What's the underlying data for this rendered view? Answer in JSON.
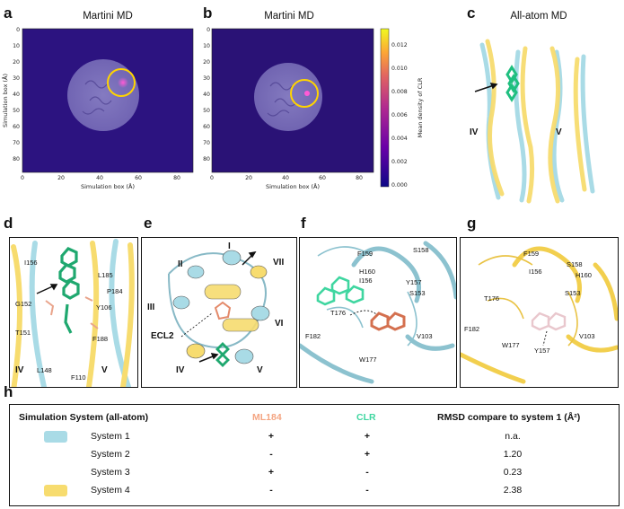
{
  "panels": {
    "a": {
      "label": "a",
      "title": "Martini MD",
      "xlabel": "Simulation box (Å)",
      "ylabel": "Simulation box (Å)",
      "xticks": [
        "0",
        "20",
        "40",
        "60",
        "80"
      ],
      "yticks": [
        "0",
        "10",
        "20",
        "30",
        "40",
        "50",
        "60",
        "70",
        "80"
      ]
    },
    "b": {
      "label": "b",
      "title": "Martini MD",
      "xlabel": "Simulation box (Å)",
      "xticks": [
        "0",
        "20",
        "40",
        "60",
        "80"
      ],
      "yticks": [
        "0",
        "10",
        "20",
        "30",
        "40",
        "50",
        "60",
        "70",
        "80"
      ]
    },
    "c": {
      "label": "c",
      "title": "All-atom MD",
      "helix_left": "IV",
      "helix_right": "V"
    },
    "d": {
      "label": "d",
      "residues": [
        "I156",
        "L185",
        "P184",
        "G152",
        "Y106",
        "T151",
        "F188",
        "L148",
        "F110"
      ],
      "helix_left": "IV",
      "helix_right": "V"
    },
    "e": {
      "label": "e",
      "helices": [
        "I",
        "II",
        "III",
        "IV",
        "V",
        "VI",
        "VII"
      ],
      "loop": "ECL2"
    },
    "f": {
      "label": "f",
      "residues": [
        "F159",
        "S158",
        "H160",
        "I156",
        "Y157",
        "T176",
        "S153",
        "F182",
        "V103",
        "W177"
      ]
    },
    "g": {
      "label": "g",
      "residues": [
        "F159",
        "S158",
        "I156",
        "H160",
        "T176",
        "S153",
        "F182",
        "V103",
        "W177",
        "Y157"
      ]
    },
    "h": {
      "label": "h"
    }
  },
  "colorbar": {
    "label": "Mean density of CLR",
    "ticks": [
      "0.000",
      "0.002",
      "0.004",
      "0.006",
      "0.008",
      "0.010",
      "0.012"
    ]
  },
  "table": {
    "headers": {
      "system": "Simulation System (all-atom)",
      "ml184": "ML184",
      "clr": "CLR",
      "rmsd": "RMSD compare to system 1 (Å²)"
    },
    "rows": [
      {
        "name": "System 1",
        "ml184": "+",
        "clr": "+",
        "rmsd": "n.a.",
        "color": "#a9dbe6"
      },
      {
        "name": "System 2",
        "ml184": "-",
        "clr": "+",
        "rmsd": "1.20",
        "color": ""
      },
      {
        "name": "System 3",
        "ml184": "+",
        "clr": "-",
        "rmsd": "0.23",
        "color": ""
      },
      {
        "name": "System 4",
        "ml184": "-",
        "clr": "-",
        "rmsd": "2.38",
        "color": "#f7dc6f"
      }
    ]
  },
  "colors": {
    "system1": "#a9dbe6",
    "system4": "#f7dc6f",
    "ml184": "#f4a582",
    "clr": "#3fd6a0",
    "heatmap_bg": "#2c1380",
    "ring": "#ffd400"
  }
}
